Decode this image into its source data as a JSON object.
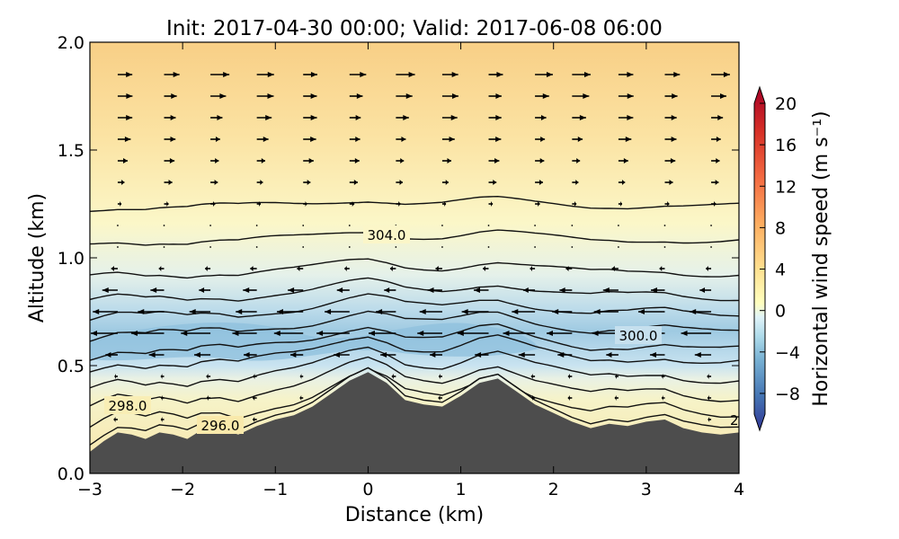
{
  "chart_data": {
    "type": "heatmap",
    "title": "Init: 2017-04-30 00:00; Valid: 2017-06-08 06:00",
    "xlabel": "Distance (km)",
    "ylabel": "Altitude (km)",
    "xlim": [
      -3,
      4
    ],
    "ylim": [
      0,
      2
    ],
    "x_ticks": [
      -3,
      -2,
      -1,
      0,
      1,
      2,
      3,
      4
    ],
    "x_tick_labels": [
      "−3",
      "−2",
      "−1",
      "0",
      "1",
      "2",
      "3",
      "4"
    ],
    "y_ticks": [
      0.0,
      0.5,
      1.0,
      1.5,
      2.0
    ],
    "y_tick_labels": [
      "0.0",
      "0.5",
      "1.0",
      "1.5",
      "2.0"
    ],
    "colorbar": {
      "label": "Horizontal wind speed (m s⁻¹)",
      "range": [
        -10,
        20
      ],
      "ticks": [
        -8,
        -4,
        0,
        4,
        8,
        12,
        16,
        20
      ],
      "tick_labels": [
        "−8",
        "−4",
        "0",
        "4",
        "8",
        "12",
        "16",
        "20"
      ],
      "colormap": "RdYlBu_r"
    },
    "terrain": {
      "color": "#4d4d4d",
      "profile": [
        [
          -3.0,
          0.1
        ],
        [
          -2.85,
          0.15
        ],
        [
          -2.7,
          0.19
        ],
        [
          -2.55,
          0.18
        ],
        [
          -2.4,
          0.16
        ],
        [
          -2.25,
          0.19
        ],
        [
          -2.1,
          0.18
        ],
        [
          -1.95,
          0.16
        ],
        [
          -1.8,
          0.2
        ],
        [
          -1.6,
          0.21
        ],
        [
          -1.4,
          0.18
        ],
        [
          -1.2,
          0.22
        ],
        [
          -1.0,
          0.25
        ],
        [
          -0.8,
          0.27
        ],
        [
          -0.6,
          0.31
        ],
        [
          -0.4,
          0.37
        ],
        [
          -0.2,
          0.43
        ],
        [
          0.0,
          0.47
        ],
        [
          0.2,
          0.42
        ],
        [
          0.4,
          0.34
        ],
        [
          0.6,
          0.32
        ],
        [
          0.8,
          0.31
        ],
        [
          1.0,
          0.36
        ],
        [
          1.2,
          0.42
        ],
        [
          1.4,
          0.44
        ],
        [
          1.6,
          0.38
        ],
        [
          1.8,
          0.32
        ],
        [
          2.0,
          0.28
        ],
        [
          2.2,
          0.24
        ],
        [
          2.4,
          0.21
        ],
        [
          2.6,
          0.23
        ],
        [
          2.8,
          0.22
        ],
        [
          3.0,
          0.24
        ],
        [
          3.2,
          0.25
        ],
        [
          3.4,
          0.21
        ],
        [
          3.6,
          0.19
        ],
        [
          3.8,
          0.18
        ],
        [
          4.0,
          0.19
        ]
      ]
    },
    "wind_field": {
      "x": [
        -2.7,
        -2.2,
        -1.7,
        -1.2,
        -0.7,
        -0.2,
        0.3,
        0.8,
        1.3,
        1.8,
        2.2,
        2.7,
        3.2,
        3.7
      ],
      "profile": [
        [
          0.45,
          -0.5
        ],
        [
          0.55,
          -2.0
        ],
        [
          0.62,
          -4.0
        ],
        [
          0.7,
          -4.0
        ],
        [
          0.8,
          -2.5
        ],
        [
          0.92,
          -1.0
        ],
        [
          1.05,
          -0.2
        ],
        [
          1.2,
          0.4
        ],
        [
          1.35,
          1.0
        ],
        [
          1.52,
          1.5
        ],
        [
          1.72,
          2.0
        ],
        [
          1.93,
          2.5
        ]
      ],
      "note": "quiver arrows: horizontal wind component (m/s); easterly flow in 0.5-0.9 km layer, westerly aloft"
    },
    "contours": {
      "variable": "potential temperature (K)",
      "levels": [
        296,
        297,
        298,
        299,
        300,
        301,
        302,
        303,
        304,
        305
      ],
      "labels": [
        "298.0",
        "296.0",
        "304.0",
        "300.0",
        "2"
      ]
    }
  }
}
